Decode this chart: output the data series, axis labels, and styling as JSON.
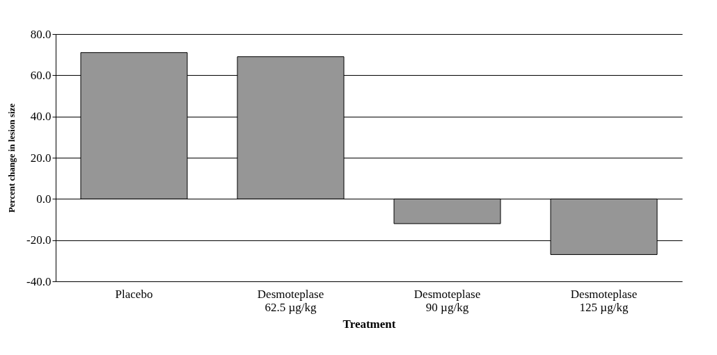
{
  "chart_data": {
    "type": "bar",
    "xlabel": "Treatment",
    "ylabel": "Percent change in lesion size",
    "categories": [
      "Placebo",
      "Desmoteplase\n62.5 µg/kg",
      "Desmoteplase\n90 µg/kg",
      "Desmoteplase\n125 µg/kg"
    ],
    "values": [
      71,
      69,
      -12,
      -27
    ],
    "color": "#969696",
    "ylim": [
      -40,
      80
    ],
    "yticks": [
      {
        "value": -40,
        "label": "-40.0"
      },
      {
        "value": -20,
        "label": "-20.0"
      },
      {
        "value": 0,
        "label": "0.0"
      },
      {
        "value": 20,
        "label": "20.0"
      },
      {
        "value": 40,
        "label": "40.0"
      },
      {
        "value": 60,
        "label": "60.0"
      },
      {
        "value": 80,
        "label": "80.0"
      }
    ],
    "grid": "y"
  }
}
